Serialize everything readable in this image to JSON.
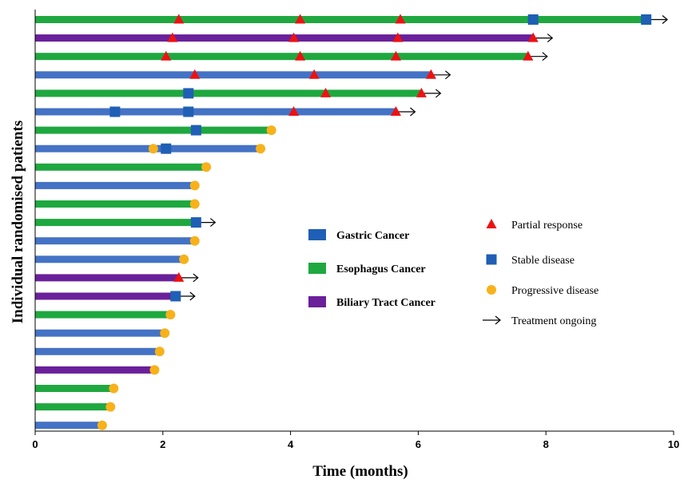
{
  "chart_data": {
    "type": "bar",
    "orientation": "horizontal",
    "title": "",
    "xlabel": "Time (months)",
    "ylabel": "Individual randomised patients",
    "xlim": [
      0,
      10
    ],
    "x_ticks": [
      "0",
      "2",
      "4",
      "6",
      "8",
      "10"
    ],
    "grid": false,
    "colors": {
      "gastric": "#4472C4",
      "esophagus": "#1FA83F",
      "biliary": "#6A209A",
      "partial_response": "#EE1111",
      "stable_disease": "#1F5FB5",
      "progressive_disease": "#F7B21A",
      "arrow": "#000000"
    },
    "cancer_legend": [
      {
        "key": "gastric",
        "label": "Gastric Cancer",
        "swatch_color": "#1F5FB5"
      },
      {
        "key": "esophagus",
        "label": "Esophagus Cancer",
        "swatch_color": "#1FA83F"
      },
      {
        "key": "biliary",
        "label": "Biliary Tract Cancer",
        "swatch_color": "#6A209A"
      }
    ],
    "marker_legend": [
      {
        "key": "partial_response",
        "label": "Partial response",
        "symbol": "triangle"
      },
      {
        "key": "stable_disease",
        "label": "Stable disease",
        "symbol": "square"
      },
      {
        "key": "progressive_disease",
        "label": "Progressive disease",
        "symbol": "circle"
      },
      {
        "key": "ongoing",
        "label": "Treatment ongoing",
        "symbol": "arrow"
      }
    ],
    "patients": [
      {
        "cancer": "esophagus",
        "end": 9.6,
        "ongoing": true,
        "events": [
          {
            "t": 2.25,
            "type": "pr"
          },
          {
            "t": 4.15,
            "type": "pr"
          },
          {
            "t": 5.72,
            "type": "pr"
          },
          {
            "t": 7.8,
            "type": "sd"
          },
          {
            "t": 9.57,
            "type": "sd"
          }
        ]
      },
      {
        "cancer": "biliary",
        "end": 7.8,
        "ongoing": true,
        "events": [
          {
            "t": 2.15,
            "type": "pr"
          },
          {
            "t": 4.05,
            "type": "pr"
          },
          {
            "t": 5.68,
            "type": "pr"
          },
          {
            "t": 7.8,
            "type": "pr"
          }
        ]
      },
      {
        "cancer": "esophagus",
        "end": 7.72,
        "ongoing": true,
        "events": [
          {
            "t": 2.05,
            "type": "pr"
          },
          {
            "t": 4.15,
            "type": "pr"
          },
          {
            "t": 5.65,
            "type": "pr"
          },
          {
            "t": 7.72,
            "type": "pr"
          }
        ]
      },
      {
        "cancer": "gastric",
        "end": 6.2,
        "ongoing": true,
        "events": [
          {
            "t": 2.5,
            "type": "pr"
          },
          {
            "t": 4.37,
            "type": "pr"
          },
          {
            "t": 6.2,
            "type": "pr"
          }
        ]
      },
      {
        "cancer": "esophagus",
        "end": 6.05,
        "ongoing": true,
        "events": [
          {
            "t": 2.4,
            "type": "sd"
          },
          {
            "t": 4.55,
            "type": "pr"
          },
          {
            "t": 6.05,
            "type": "pr"
          }
        ]
      },
      {
        "cancer": "gastric",
        "end": 5.65,
        "ongoing": true,
        "events": [
          {
            "t": 1.25,
            "type": "sd"
          },
          {
            "t": 2.4,
            "type": "sd"
          },
          {
            "t": 4.05,
            "type": "pr"
          },
          {
            "t": 5.65,
            "type": "pr"
          }
        ]
      },
      {
        "cancer": "esophagus",
        "end": 3.7,
        "ongoing": false,
        "events": [
          {
            "t": 2.52,
            "type": "sd"
          },
          {
            "t": 3.7,
            "type": "pd"
          }
        ]
      },
      {
        "cancer": "gastric",
        "end": 3.53,
        "ongoing": false,
        "events": [
          {
            "t": 1.85,
            "type": "pd"
          },
          {
            "t": 2.05,
            "type": "sd"
          },
          {
            "t": 3.53,
            "type": "pd"
          }
        ]
      },
      {
        "cancer": "esophagus",
        "end": 2.68,
        "ongoing": false,
        "events": [
          {
            "t": 2.68,
            "type": "pd"
          }
        ]
      },
      {
        "cancer": "gastric",
        "end": 2.5,
        "ongoing": false,
        "events": [
          {
            "t": 2.5,
            "type": "pd"
          }
        ]
      },
      {
        "cancer": "esophagus",
        "end": 2.5,
        "ongoing": false,
        "events": [
          {
            "t": 2.5,
            "type": "pd"
          }
        ]
      },
      {
        "cancer": "esophagus",
        "end": 2.52,
        "ongoing": true,
        "events": [
          {
            "t": 2.52,
            "type": "sd"
          }
        ]
      },
      {
        "cancer": "gastric",
        "end": 2.5,
        "ongoing": false,
        "events": [
          {
            "t": 2.5,
            "type": "pd"
          }
        ]
      },
      {
        "cancer": "gastric",
        "end": 2.33,
        "ongoing": false,
        "events": [
          {
            "t": 2.33,
            "type": "pd"
          }
        ]
      },
      {
        "cancer": "biliary",
        "end": 2.25,
        "ongoing": true,
        "events": [
          {
            "t": 2.25,
            "type": "pr"
          }
        ]
      },
      {
        "cancer": "biliary",
        "end": 2.2,
        "ongoing": true,
        "events": [
          {
            "t": 2.2,
            "type": "sd"
          }
        ]
      },
      {
        "cancer": "esophagus",
        "end": 2.12,
        "ongoing": false,
        "events": [
          {
            "t": 2.12,
            "type": "pd"
          }
        ]
      },
      {
        "cancer": "gastric",
        "end": 2.03,
        "ongoing": false,
        "events": [
          {
            "t": 2.03,
            "type": "pd"
          }
        ]
      },
      {
        "cancer": "gastric",
        "end": 1.95,
        "ongoing": false,
        "events": [
          {
            "t": 1.95,
            "type": "pd"
          }
        ]
      },
      {
        "cancer": "biliary",
        "end": 1.87,
        "ongoing": false,
        "events": [
          {
            "t": 1.87,
            "type": "pd"
          }
        ]
      },
      {
        "cancer": "esophagus",
        "end": 1.23,
        "ongoing": false,
        "events": [
          {
            "t": 1.23,
            "type": "pd"
          }
        ]
      },
      {
        "cancer": "esophagus",
        "end": 1.18,
        "ongoing": false,
        "events": [
          {
            "t": 1.18,
            "type": "pd"
          }
        ]
      },
      {
        "cancer": "gastric",
        "end": 1.05,
        "ongoing": false,
        "events": [
          {
            "t": 1.05,
            "type": "pd"
          }
        ]
      }
    ]
  }
}
